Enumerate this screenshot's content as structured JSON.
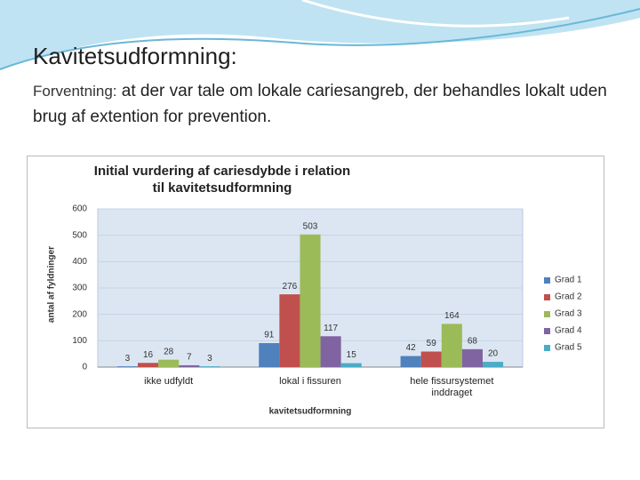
{
  "slide": {
    "title": "Kavitetsudformning:",
    "lead": "Forventning:",
    "body": "at der var tale om lokale cariesangreb, der behandles lokalt uden brug af extention for prevention."
  },
  "chart_data": {
    "type": "bar",
    "title": "Initial vurdering af cariesdybde i relation til kavitetsudformning",
    "x_label": "kavitetsudformning",
    "y_label": "antal af fyldninger",
    "categories": [
      "ikke udfyldt",
      "lokal i fissuren",
      "hele fissursystemet inddraget"
    ],
    "series": [
      {
        "name": "Grad 1",
        "color": "#4f81bd",
        "values": [
          3,
          91,
          42
        ]
      },
      {
        "name": "Grad 2",
        "color": "#c0504d",
        "values": [
          16,
          276,
          59
        ]
      },
      {
        "name": "Grad 3",
        "color": "#9bbb59",
        "values": [
          28,
          503,
          164
        ]
      },
      {
        "name": "Grad 4",
        "color": "#8064a2",
        "values": [
          7,
          117,
          68
        ]
      },
      {
        "name": "Grad 5",
        "color": "#4bacc6",
        "values": [
          3,
          15,
          20
        ]
      }
    ],
    "ylim": [
      0,
      600
    ],
    "yticks": [
      0,
      100,
      200,
      300,
      400,
      500,
      600
    ],
    "grid": true,
    "legend": "right"
  }
}
